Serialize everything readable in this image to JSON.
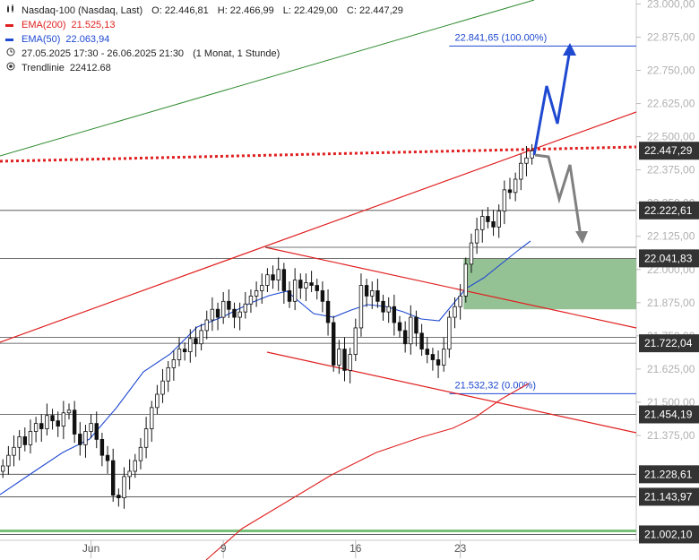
{
  "legend": {
    "title": "Nasdaq-100 (Nasdaq, Last)",
    "ohlc": {
      "o": "O: 22.446,81",
      "h": "H: 22.466,99",
      "l": "L: 22.429,00",
      "c": "C: 22.447,29"
    },
    "ema200": {
      "label": "EMA(200)",
      "value": "21.525,13",
      "color": "#e02020"
    },
    "ema50": {
      "label": "EMA(50)",
      "value": "22.063,94",
      "color": "#1f49d1"
    },
    "range": {
      "dates": "27.05.2025 17:30 - 26.06.2025 21:30",
      "period": "(1 Monat, 1 Stunde)"
    },
    "trendline": {
      "label": "Trendlinie",
      "value": "22412.68"
    }
  },
  "chart_data": {
    "type": "candlestick",
    "instrument": "Nasdaq-100 (Nasdaq, Last)",
    "ylim": [
      20980,
      23015
    ],
    "y_ticks": [
      "23.000,00",
      "22.875,00",
      "22.750,00",
      "22.625,00",
      "22.500,00",
      "22.375,00",
      "22.250,00",
      "22.125,00",
      "22.000,00",
      "21.875,00",
      "21.750,00",
      "21.625,00",
      "21.500,00",
      "21.375,00"
    ],
    "y_tick_values": [
      23000,
      22875,
      22750,
      22625,
      22500,
      22375,
      22250,
      22125,
      22000,
      21875,
      21750,
      21625,
      21500,
      21375
    ],
    "x_tick_labels": [
      {
        "bar": 16,
        "label": "Jun"
      },
      {
        "bar": 40,
        "label": "9"
      },
      {
        "bar": 64,
        "label": "16"
      },
      {
        "bar": 83,
        "label": "23"
      }
    ],
    "closes": [
      21260,
      21300,
      21330,
      21370,
      21340,
      21390,
      21420,
      21400,
      21450,
      21430,
      21410,
      21460,
      21470,
      21380,
      21340,
      21390,
      21420,
      21360,
      21300,
      21280,
      21150,
      21140,
      21220,
      21240,
      21280,
      21330,
      21400,
      21480,
      21530,
      21580,
      21630,
      21660,
      21700,
      21690,
      21740,
      21720,
      21770,
      21810,
      21850,
      21820,
      21880,
      21850,
      21820,
      21840,
      21870,
      21900,
      21920,
      21940,
      21980,
      21960,
      22000,
      21920,
      21880,
      21960,
      21930,
      21950,
      21940,
      21920,
      21880,
      21800,
      21640,
      21700,
      21620,
      21680,
      21780,
      21940,
      21900,
      21920,
      21880,
      21840,
      21860,
      21800,
      21770,
      21720,
      21820,
      21760,
      21700,
      21680,
      21660,
      21640,
      21700,
      21820,
      21860,
      21900,
      22020,
      22100,
      22150,
      22200,
      22180,
      22160,
      22220,
      22300,
      22290,
      22340,
      22400,
      22420,
      22447
    ],
    "price_labels": [
      {
        "text": "22.447,29",
        "value": 22447.29,
        "style": "dark"
      },
      {
        "text": "22.222,61",
        "value": 22222.61,
        "style": "dark"
      },
      {
        "text": "22.041,83",
        "value": 22041.83,
        "style": "dark"
      },
      {
        "text": "21.722,04",
        "value": 21722.04,
        "style": "dark"
      },
      {
        "text": "21.454,19",
        "value": 21454.19,
        "style": "dark"
      },
      {
        "text": "21.228,61",
        "value": 21228.61,
        "style": "dark"
      },
      {
        "text": "21.143,97",
        "value": 21143.97,
        "style": "dark"
      },
      {
        "text": "21.002,10",
        "value": 21002.1,
        "style": "dark"
      }
    ],
    "fib_labels": [
      {
        "text": "22.841,65 (100.00%)",
        "value": 22841.65
      },
      {
        "text": "21.532,32 (0.00%)",
        "value": 21532.32
      }
    ],
    "horizontal_levels": [
      22222.61,
      22041.83,
      21744,
      21722.04,
      21454.19,
      21228.61,
      21143.97,
      21002.1
    ],
    "support_zone": [
      21850,
      22040
    ],
    "red_dotted_level": 22412.68,
    "colors": {
      "ema200": "#e02020",
      "ema50": "#1f49d1",
      "up_arrow": "#1f49d1",
      "down_arrow": "#808080",
      "zone": "#8fbf8f",
      "uptrend": "#2e8b2e"
    }
  }
}
